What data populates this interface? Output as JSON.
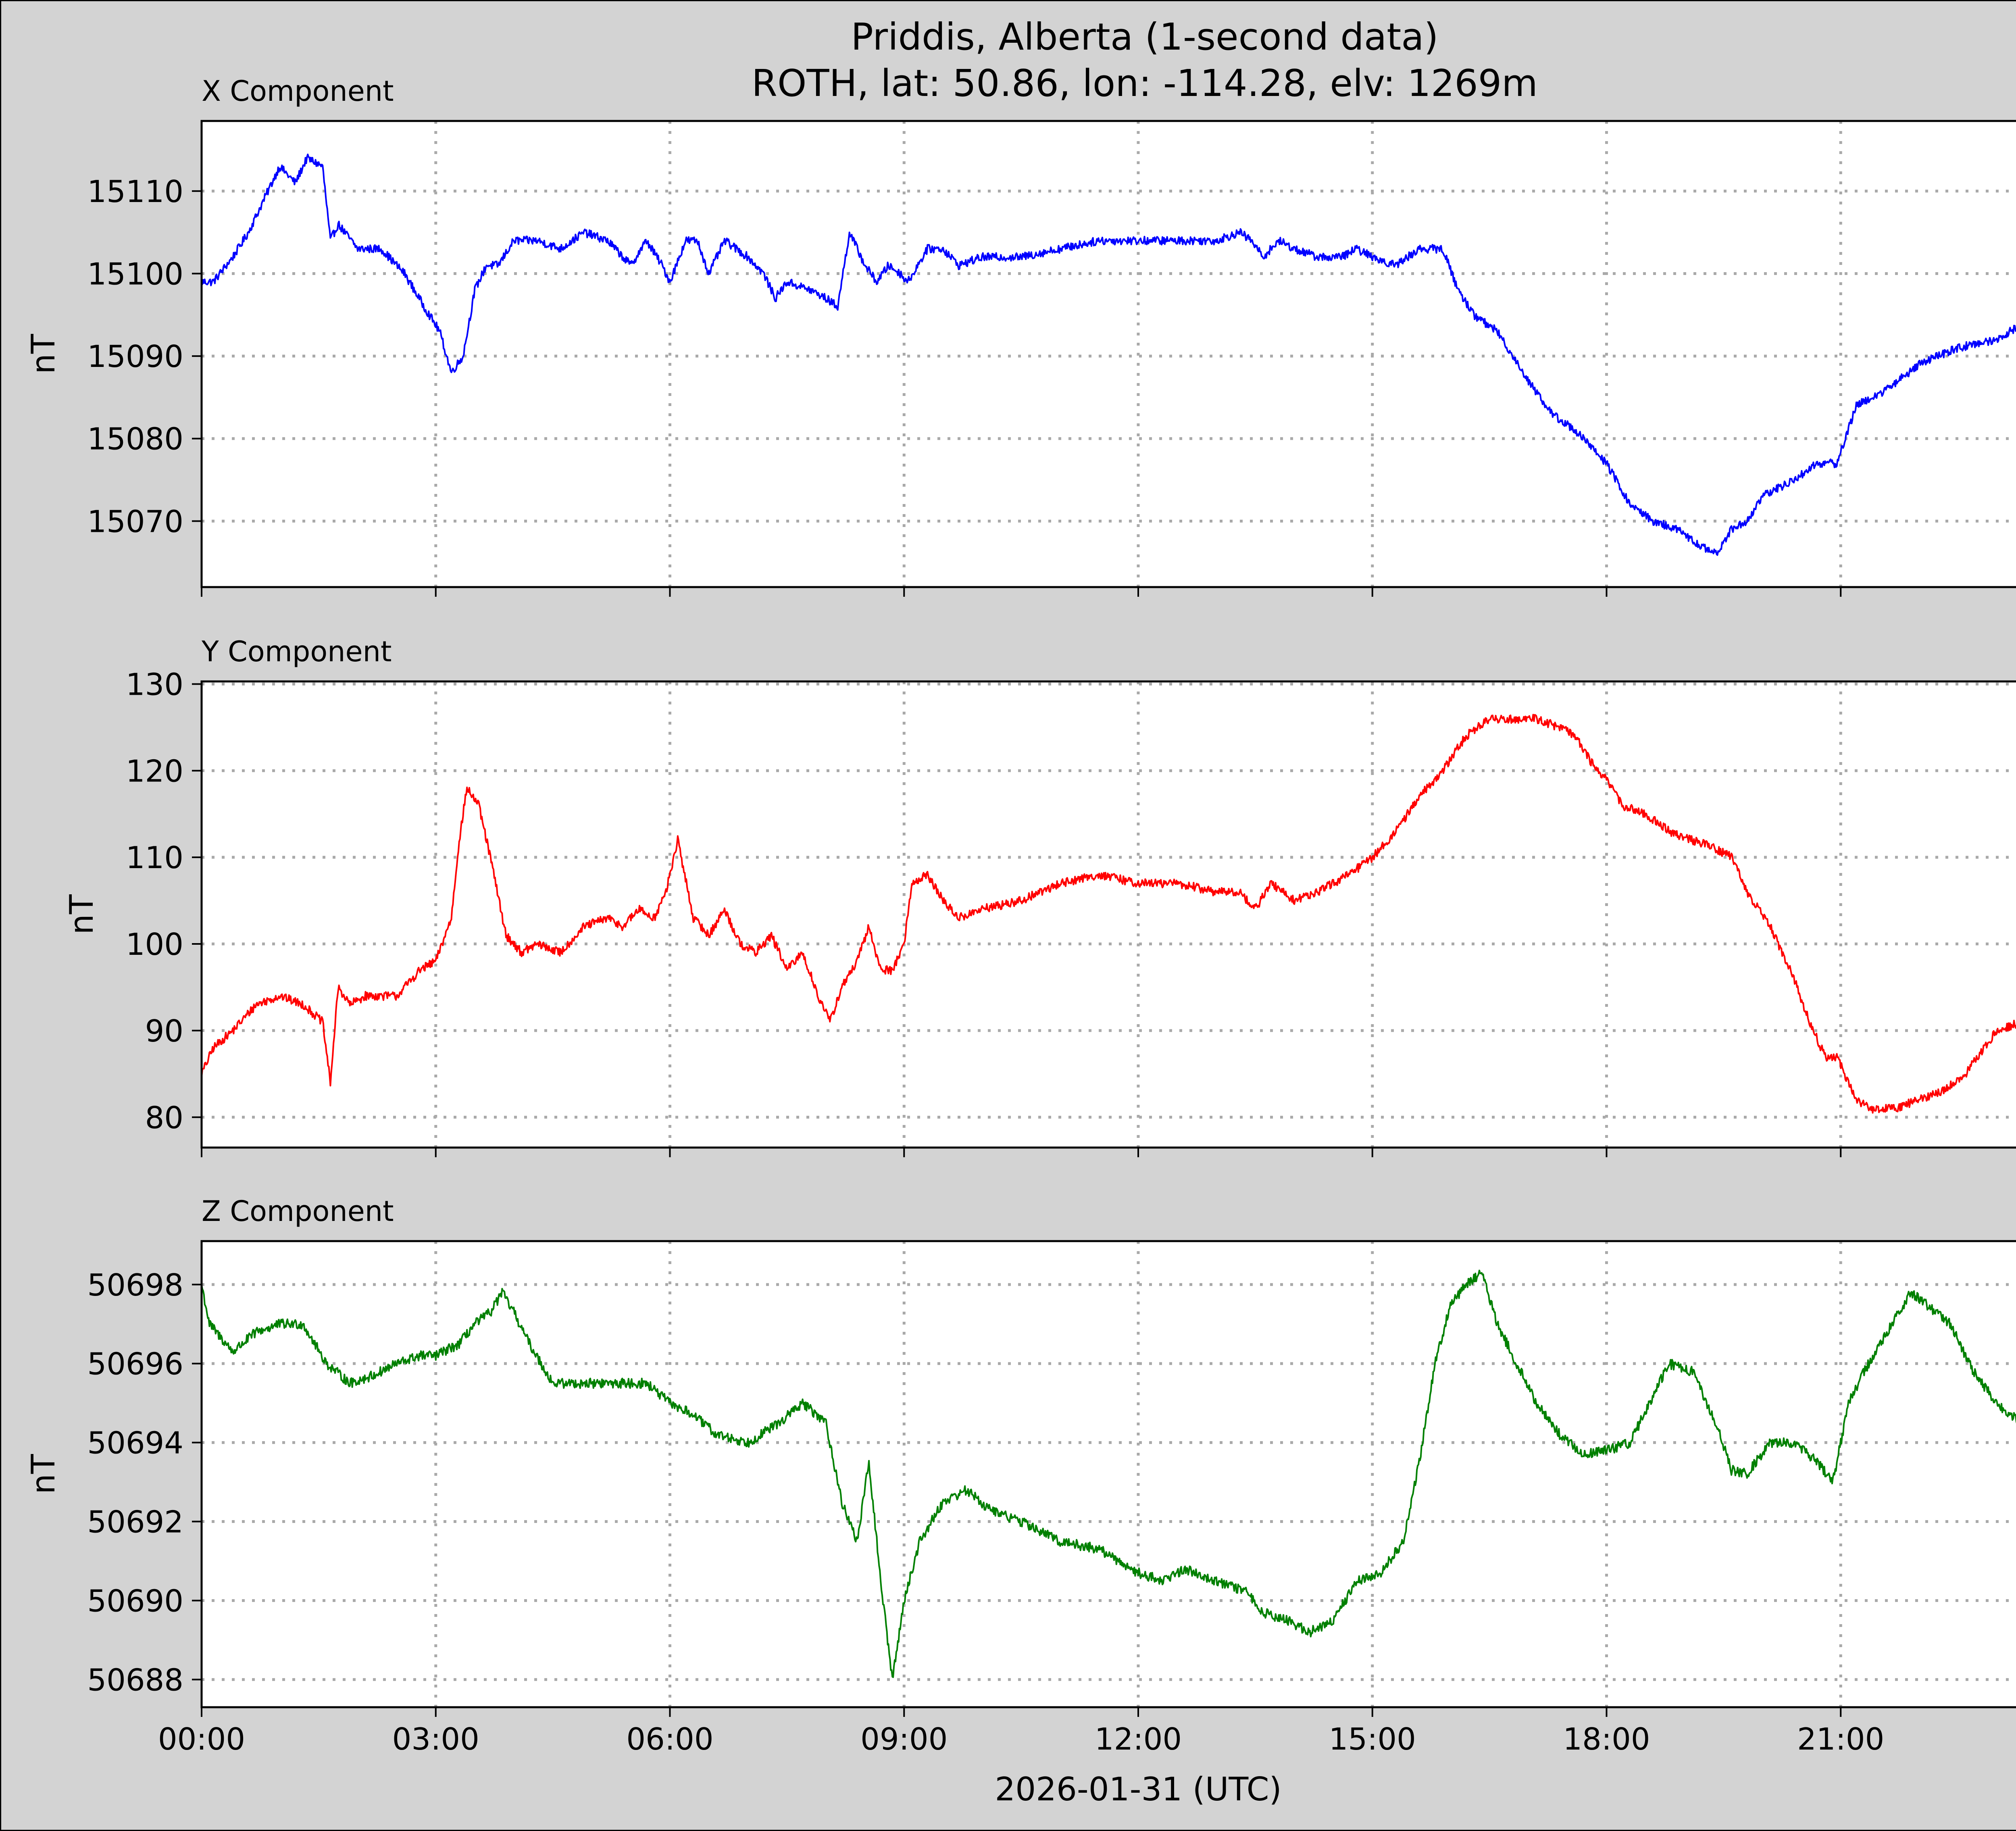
{
  "figure": {
    "title_line1": "Priddis, Alberta (1-second data)",
    "title_line2": "ROTH, lat: 50.86, lon: -114.28, elv: 1269m",
    "xlabel": "2026-01-31 (UTC)"
  },
  "chart_data": [
    {
      "type": "line",
      "title": "X Component",
      "ylabel": "nT",
      "color": "#0000ff",
      "xlim": [
        0,
        24
      ],
      "ylim": [
        15062,
        15118.5
      ],
      "yticks": [
        15070,
        15080,
        15090,
        15100,
        15110
      ],
      "xticks": [
        0,
        3,
        6,
        9,
        12,
        15,
        18,
        21
      ],
      "xtick_labels": [
        "00:00",
        "03:00",
        "06:00",
        "09:00",
        "12:00",
        "15:00",
        "18:00",
        "21:00"
      ],
      "grid": true,
      "noise": 1.0,
      "series": [
        {
          "x": [
            0,
            0.15,
            0.4,
            0.6,
            0.8,
            1.0,
            1.2,
            1.35,
            1.55,
            1.65,
            1.75,
            2.0,
            2.3,
            2.6,
            2.85,
            3.05,
            3.2,
            3.35,
            3.5,
            3.65,
            3.8,
            4.0,
            4.3,
            4.6,
            4.9,
            5.2,
            5.5,
            5.7,
            5.9,
            6.0,
            6.2,
            6.35,
            6.5,
            6.7,
            7.0,
            7.2,
            7.35,
            7.5,
            7.8,
            8.0,
            8.15,
            8.3,
            8.5,
            8.65,
            8.8,
            8.95,
            9.05,
            9.3,
            9.5,
            9.7,
            10.0,
            10.5,
            11.0,
            11.5,
            12.0,
            12.5,
            13.0,
            13.3,
            13.45,
            13.6,
            13.8,
            14.0,
            14.3,
            14.6,
            14.8,
            15.0,
            15.3,
            15.6,
            15.9,
            16.1,
            16.3,
            16.6,
            17.0,
            17.3,
            17.6,
            18.0,
            18.3,
            18.6,
            18.9,
            19.2,
            19.4,
            19.6,
            19.8,
            20.0,
            20.4,
            20.7,
            20.95,
            21.2,
            21.6,
            22.0,
            22.5,
            23.0,
            23.5,
            24.0
          ],
          "y": [
            15099,
            15099,
            15102,
            15105,
            15109,
            15113,
            15111,
            15114,
            15113,
            15104,
            15106,
            15103,
            15103,
            15100,
            15096,
            15093,
            15088,
            15090,
            15098,
            15101,
            15101,
            15104,
            15104,
            15103,
            15105,
            15104,
            15101,
            15104,
            15101,
            15099,
            15104,
            15104,
            15100,
            15104,
            15102,
            15100,
            15097,
            15099,
            15098,
            15097,
            15096,
            15105,
            15101,
            15099,
            15101,
            15100,
            15099,
            15103,
            15103,
            15101,
            15102,
            15102,
            15103,
            15104,
            15104,
            15104,
            15104,
            15105,
            15104,
            15102,
            15104,
            15103,
            15102,
            15102,
            15103,
            15102,
            15101,
            15103,
            15103,
            15098,
            15095,
            15093,
            15087,
            15083,
            15081,
            15077,
            15072,
            15070,
            15069,
            15067,
            15066,
            15069,
            15070,
            15073,
            15075,
            15077,
            15077,
            15084,
            15086,
            15089,
            15091,
            15092,
            15095,
            15096
          ]
        }
      ]
    },
    {
      "type": "line",
      "title": "Y Component",
      "ylabel": "nT",
      "color": "#ff0000",
      "xlim": [
        0,
        24
      ],
      "ylim": [
        76.5,
        130.3
      ],
      "yticks": [
        80,
        90,
        100,
        110,
        120,
        130
      ],
      "xticks": [
        0,
        3,
        6,
        9,
        12,
        15,
        18,
        21
      ],
      "xtick_labels": [
        "00:00",
        "03:00",
        "06:00",
        "09:00",
        "12:00",
        "15:00",
        "18:00",
        "21:00"
      ],
      "grid": true,
      "noise": 1.0,
      "series": [
        {
          "x": [
            0,
            0.15,
            0.4,
            0.7,
            1.0,
            1.3,
            1.55,
            1.65,
            1.75,
            1.9,
            2.1,
            2.5,
            2.8,
            3.0,
            3.2,
            3.3,
            3.4,
            3.55,
            3.7,
            3.9,
            4.1,
            4.3,
            4.6,
            4.9,
            5.2,
            5.4,
            5.6,
            5.8,
            5.95,
            6.1,
            6.3,
            6.5,
            6.7,
            6.9,
            7.1,
            7.3,
            7.5,
            7.7,
            7.9,
            8.05,
            8.2,
            8.4,
            8.55,
            8.7,
            8.85,
            9.0,
            9.1,
            9.3,
            9.5,
            9.7,
            10.0,
            10.5,
            11.0,
            11.5,
            12.0,
            12.5,
            13.0,
            13.3,
            13.5,
            13.7,
            14.0,
            14.3,
            14.7,
            15.0,
            15.3,
            15.6,
            15.9,
            16.2,
            16.5,
            16.8,
            17.1,
            17.4,
            17.6,
            17.8,
            18.0,
            18.2,
            18.5,
            18.8,
            19.1,
            19.4,
            19.6,
            19.8,
            20.1,
            20.4,
            20.6,
            20.8,
            20.95,
            21.2,
            21.4,
            21.7,
            22.0,
            22.3,
            22.6,
            23.0,
            23.3,
            23.6,
            24.0
          ],
          "y": [
            85,
            88,
            90,
            93,
            94,
            93,
            91,
            84,
            95,
            93,
            94,
            94,
            97,
            98,
            103,
            112,
            118,
            116,
            110,
            101,
            99,
            100,
            99,
            102,
            103,
            102,
            104,
            103,
            106,
            112,
            103,
            101,
            104,
            100,
            99,
            101,
            97,
            99,
            94,
            91,
            95,
            98,
            102,
            97,
            97,
            100,
            107,
            108,
            105,
            103,
            104,
            105,
            107,
            108,
            107,
            107,
            106,
            106,
            104,
            107,
            105,
            106,
            108,
            110,
            113,
            117,
            120,
            124,
            126,
            126,
            126,
            125,
            124,
            121,
            119,
            116,
            115,
            113,
            112,
            111,
            110,
            106,
            102,
            96,
            91,
            87,
            87,
            82,
            81,
            81,
            82,
            83,
            85,
            90,
            91,
            93,
            95
          ]
        }
      ]
    },
    {
      "type": "line",
      "title": "Z Component",
      "ylabel": "nT",
      "color": "#008000",
      "xlim": [
        0,
        24
      ],
      "ylim": [
        50687.3,
        50699.1
      ],
      "yticks": [
        50688,
        50690,
        50692,
        50694,
        50696,
        50698
      ],
      "xticks": [
        0,
        3,
        6,
        9,
        12,
        15,
        18,
        21
      ],
      "xtick_labels": [
        "00:00",
        "03:00",
        "06:00",
        "09:00",
        "12:00",
        "15:00",
        "18:00",
        "21:00"
      ],
      "grid": true,
      "noise": 0.25,
      "series": [
        {
          "x": [
            0,
            0.1,
            0.4,
            0.7,
            1.0,
            1.3,
            1.6,
            1.9,
            2.2,
            2.5,
            2.8,
            3.0,
            3.3,
            3.5,
            3.7,
            3.85,
            4.0,
            4.2,
            4.5,
            4.9,
            5.3,
            5.7,
            6.0,
            6.3,
            6.6,
            7.0,
            7.4,
            7.7,
            8.0,
            8.2,
            8.4,
            8.55,
            8.7,
            8.85,
            9.0,
            9.2,
            9.5,
            9.8,
            10.1,
            10.5,
            11.0,
            11.5,
            12.0,
            12.3,
            12.6,
            13.0,
            13.4,
            13.6,
            13.9,
            14.2,
            14.5,
            14.8,
            15.1,
            15.4,
            15.6,
            15.8,
            16.0,
            16.2,
            16.4,
            16.6,
            16.8,
            17.1,
            17.4,
            17.7,
            18.0,
            18.3,
            18.5,
            18.8,
            19.1,
            19.4,
            19.6,
            19.8,
            20.1,
            20.4,
            20.7,
            20.9,
            21.1,
            21.3,
            21.6,
            21.9,
            22.1,
            22.4,
            22.7,
            23.0,
            23.3,
            23.6,
            24.0
          ],
          "y": [
            50698,
            50697,
            50696.3,
            50696.8,
            50697,
            50697,
            50696,
            50695.5,
            50695.7,
            50696,
            50696.2,
            50696.2,
            50696.5,
            50697,
            50697.3,
            50697.8,
            50697.3,
            50696.5,
            50695.5,
            50695.5,
            50695.5,
            50695.5,
            50695,
            50694.7,
            50694.2,
            50694,
            50694.5,
            50695,
            50694.5,
            50692.5,
            50691.5,
            50693.5,
            50690.5,
            50688,
            50690,
            50691.5,
            50692.5,
            50692.8,
            50692.3,
            50692,
            50691.5,
            50691.3,
            50690.7,
            50690.5,
            50690.8,
            50690.5,
            50690.2,
            50689.7,
            50689.5,
            50689.2,
            50689.5,
            50690.5,
            50690.7,
            50691.5,
            50693.5,
            50696,
            50697.5,
            50698,
            50698.3,
            50697,
            50696.2,
            50695,
            50694.2,
            50693.7,
            50693.8,
            50694,
            50694.8,
            50696,
            50695.8,
            50694.5,
            50693.3,
            50693.2,
            50694,
            50694,
            50693.5,
            50693,
            50695,
            50695.8,
            50696.8,
            50697.8,
            50697.5,
            50697,
            50695.8,
            50695,
            50694.5,
            50694,
            50693.5
          ]
        }
      ]
    }
  ]
}
